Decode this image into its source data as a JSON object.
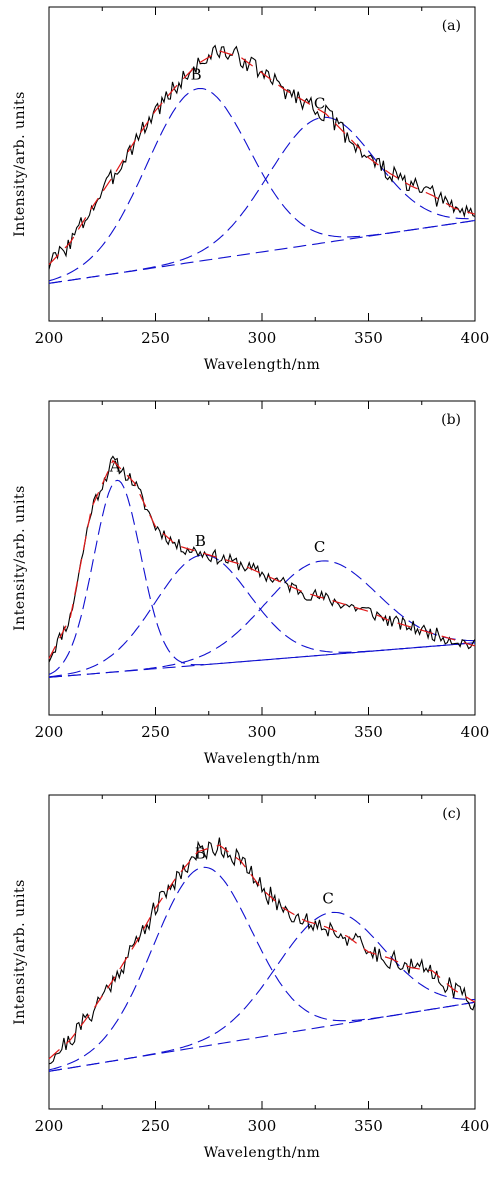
{
  "chart_data": [
    {
      "type": "line",
      "panel_label": "(a)",
      "xlabel": "Wavelength/nm",
      "ylabel": "Intensity/arb. units",
      "xlim": [
        200,
        400
      ],
      "ylim": [
        0,
        1
      ],
      "xticks": [
        200,
        250,
        300,
        350,
        400
      ],
      "grid": false,
      "baseline": [
        0.12,
        0.32
      ],
      "peaks": [
        {
          "label": "B",
          "center": 270,
          "height": 0.55,
          "width": 24
        },
        {
          "label": "C",
          "center": 328,
          "height": 0.4,
          "width": 25
        }
      ],
      "measured": {
        "noise": 0.03,
        "seed": 3
      },
      "series": [
        {
          "values": [
            [
              200,
              0.18
            ],
            [
              210,
              0.25
            ],
            [
              220,
              0.36
            ],
            [
              230,
              0.46
            ],
            [
              240,
              0.57
            ],
            [
              250,
              0.67
            ],
            [
              260,
              0.75
            ],
            [
              270,
              0.82
            ],
            [
              280,
              0.86
            ],
            [
              290,
              0.84
            ],
            [
              300,
              0.79
            ],
            [
              310,
              0.74
            ],
            [
              320,
              0.7
            ],
            [
              330,
              0.66
            ],
            [
              340,
              0.59
            ],
            [
              350,
              0.52
            ],
            [
              360,
              0.47
            ],
            [
              370,
              0.43
            ],
            [
              380,
              0.4
            ],
            [
              390,
              0.36
            ],
            [
              400,
              0.34
            ]
          ]
        }
      ]
    },
    {
      "type": "line",
      "panel_label": "(b)",
      "xlabel": "Wavelength/nm",
      "ylabel": "Intensity/arb. units",
      "xlim": [
        200,
        400
      ],
      "ylim": [
        0,
        1
      ],
      "xticks": [
        200,
        250,
        300,
        350,
        400
      ],
      "grid": false,
      "baseline": [
        0.12,
        0.23
      ],
      "peaks": [
        {
          "label": "A",
          "center": 232,
          "height": 0.61,
          "width": 11
        },
        {
          "label": "B",
          "center": 272,
          "height": 0.35,
          "width": 22
        },
        {
          "label": "C",
          "center": 328,
          "height": 0.3,
          "width": 26
        }
      ],
      "measured": {
        "noise": 0.022,
        "seed": 11
      },
      "series": [
        {
          "values": [
            [
              200,
              0.18
            ],
            [
              210,
              0.31
            ],
            [
              220,
              0.66
            ],
            [
              230,
              0.81
            ],
            [
              240,
              0.74
            ],
            [
              250,
              0.6
            ],
            [
              260,
              0.54
            ],
            [
              270,
              0.52
            ],
            [
              280,
              0.5
            ],
            [
              290,
              0.48
            ],
            [
              300,
              0.45
            ],
            [
              310,
              0.42
            ],
            [
              320,
              0.39
            ],
            [
              330,
              0.37
            ],
            [
              340,
              0.35
            ],
            [
              350,
              0.33
            ],
            [
              360,
              0.3
            ],
            [
              370,
              0.28
            ],
            [
              380,
              0.26
            ],
            [
              390,
              0.24
            ],
            [
              400,
              0.22
            ]
          ]
        }
      ]
    },
    {
      "type": "line",
      "panel_label": "(c)",
      "xlabel": "Wavelength/nm",
      "ylabel": "Intensity/arb. units",
      "xlim": [
        200,
        400
      ],
      "ylim": [
        0,
        1
      ],
      "xticks": [
        200,
        250,
        300,
        350,
        400
      ],
      "grid": false,
      "baseline": [
        0.12,
        0.34
      ],
      "peaks": [
        {
          "label": "B",
          "center": 272,
          "height": 0.57,
          "width": 23
        },
        {
          "label": "C",
          "center": 332,
          "height": 0.36,
          "width": 25
        }
      ],
      "measured": {
        "noise": 0.032,
        "seed": 21
      },
      "series": [
        {
          "values": [
            [
              200,
              0.16
            ],
            [
              210,
              0.22
            ],
            [
              220,
              0.31
            ],
            [
              230,
              0.41
            ],
            [
              240,
              0.52
            ],
            [
              250,
              0.64
            ],
            [
              260,
              0.74
            ],
            [
              270,
              0.82
            ],
            [
              280,
              0.84
            ],
            [
              290,
              0.79
            ],
            [
              300,
              0.7
            ],
            [
              310,
              0.64
            ],
            [
              320,
              0.6
            ],
            [
              330,
              0.58
            ],
            [
              340,
              0.55
            ],
            [
              350,
              0.5
            ],
            [
              360,
              0.48
            ],
            [
              370,
              0.45
            ],
            [
              380,
              0.44
            ],
            [
              390,
              0.38
            ],
            [
              400,
              0.34
            ]
          ]
        }
      ]
    }
  ]
}
